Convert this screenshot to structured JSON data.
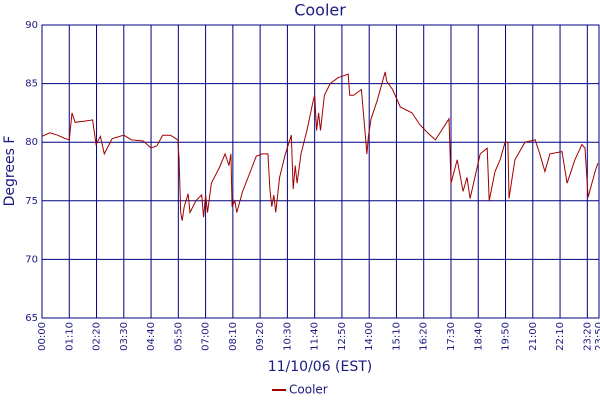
{
  "chart_data": {
    "type": "line",
    "title": "Cooler",
    "x_label": "11/10/06 (EST)",
    "y_label": "Degrees F",
    "xlim": [
      0,
      1430
    ],
    "ylim": [
      65,
      90
    ],
    "yticks": [
      65,
      70,
      75,
      80,
      85,
      90
    ],
    "xticks": [
      {
        "value": 0,
        "label": "00:00"
      },
      {
        "value": 70,
        "label": "01:10"
      },
      {
        "value": 140,
        "label": "02:20"
      },
      {
        "value": 210,
        "label": "03:30"
      },
      {
        "value": 280,
        "label": "04:40"
      },
      {
        "value": 350,
        "label": "05:50"
      },
      {
        "value": 420,
        "label": "07:00"
      },
      {
        "value": 490,
        "label": "08:10"
      },
      {
        "value": 560,
        "label": "09:20"
      },
      {
        "value": 630,
        "label": "10:30"
      },
      {
        "value": 700,
        "label": "11:40"
      },
      {
        "value": 770,
        "label": "12:50"
      },
      {
        "value": 840,
        "label": "14:00"
      },
      {
        "value": 910,
        "label": "15:10"
      },
      {
        "value": 980,
        "label": "16:20"
      },
      {
        "value": 1050,
        "label": "17:30"
      },
      {
        "value": 1120,
        "label": "18:40"
      },
      {
        "value": 1190,
        "label": "19:50"
      },
      {
        "value": 1260,
        "label": "21:00"
      },
      {
        "value": 1330,
        "label": "22:10"
      },
      {
        "value": 1400,
        "label": "23:20"
      },
      {
        "value": 1430,
        "label": "23:50"
      }
    ],
    "grid": true,
    "legend": "bottom",
    "series": [
      {
        "name": "Cooler",
        "color": "#a00000",
        "x": [
          0,
          20,
          40,
          60,
          70,
          77,
          85,
          110,
          130,
          139,
          150,
          160,
          180,
          210,
          230,
          260,
          280,
          295,
          310,
          330,
          349,
          352,
          356,
          360,
          365,
          375,
          380,
          395,
          410,
          415,
          420,
          425,
          435,
          455,
          470,
          480,
          485,
          488,
          495,
          500,
          515,
          535,
          550,
          565,
          580,
          585,
          590,
          595,
          600,
          610,
          625,
          640,
          645,
          650,
          655,
          665,
          680,
          696,
          700,
          705,
          710,
          715,
          725,
          740,
          760,
          786,
          790,
          800,
          820,
          834,
          838,
          845,
          860,
          881,
          885,
          900,
          920,
          950,
          970,
          990,
          1010,
          1045,
          1050,
          1066,
          1081,
          1091,
          1099,
          1125,
          1143,
          1148,
          1163,
          1176,
          1189,
          1196,
          1199,
          1214,
          1240,
          1266,
          1278,
          1291,
          1304,
          1335,
          1348,
          1368,
          1386,
          1394,
          1402,
          1420,
          1427
        ],
        "values": [
          80.5,
          80.8,
          80.6,
          80.3,
          80.2,
          82.5,
          81.7,
          81.8,
          81.9,
          79.8,
          80.5,
          79.0,
          80.3,
          80.6,
          80.2,
          80.1,
          79.5,
          79.7,
          80.6,
          80.6,
          80.2,
          78.5,
          74.0,
          73.3,
          74.5,
          75.6,
          74.0,
          75.0,
          75.5,
          73.6,
          75.5,
          74.0,
          76.5,
          77.8,
          79.0,
          78.0,
          79.0,
          74.5,
          75.0,
          74.0,
          75.8,
          77.5,
          78.8,
          79.0,
          79.0,
          76.0,
          74.5,
          75.5,
          74.0,
          77.0,
          79.0,
          80.6,
          76.0,
          78.0,
          76.5,
          79.0,
          81.0,
          83.5,
          84.0,
          81.0,
          82.5,
          81.0,
          84.0,
          85.0,
          85.5,
          85.8,
          84.0,
          84.0,
          84.5,
          79.0,
          80.5,
          82.0,
          83.5,
          86.0,
          85.2,
          84.5,
          83.0,
          82.5,
          81.5,
          80.8,
          80.2,
          82.0,
          76.5,
          78.5,
          75.8,
          77.0,
          75.2,
          79.0,
          79.5,
          75.0,
          77.5,
          78.5,
          80.0,
          80.0,
          75.2,
          78.5,
          80.0,
          80.2,
          79.0,
          77.5,
          79.0,
          79.2,
          76.5,
          78.5,
          79.8,
          79.5,
          75.3,
          77.5,
          78.2
        ]
      }
    ]
  }
}
